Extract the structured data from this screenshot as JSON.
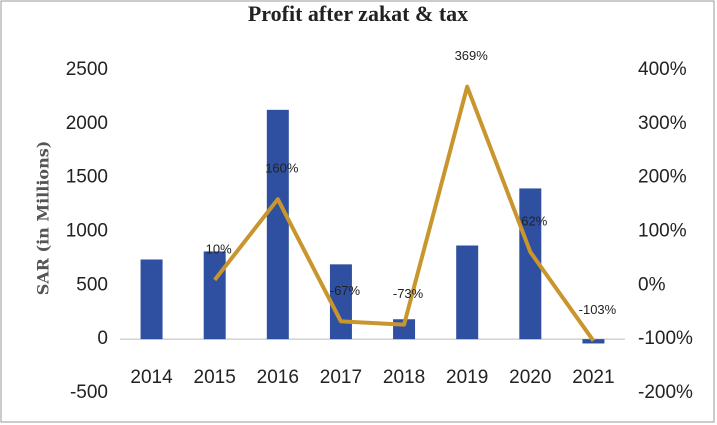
{
  "chart_data": {
    "type": "bar_line",
    "title": "Profit after zakat & tax",
    "ylabel": "SAR (in Millions)",
    "categories": [
      "2014",
      "2015",
      "2016",
      "2017",
      "2018",
      "2019",
      "2020",
      "2021"
    ],
    "series": [
      {
        "type": "bar",
        "color": "#2f50a0",
        "values": [
          740,
          815,
          2130,
          695,
          185,
          870,
          1400,
          -40
        ]
      },
      {
        "type": "line",
        "axis": "y2",
        "color": "#c9962e",
        "values": [
          null,
          10,
          160,
          -67,
          -73,
          369,
          62,
          -103
        ],
        "value_labels": [
          null,
          "10%",
          "160%",
          "-67%",
          "-73%",
          "369%",
          "62%",
          "-103%"
        ]
      }
    ],
    "ylim": [
      -500,
      2500
    ],
    "yticks": [
      -500,
      0,
      500,
      1000,
      1500,
      2000,
      2500
    ],
    "y2lim": [
      -200,
      400
    ],
    "y2ticks": [
      {
        "value": -200,
        "label": "-200%"
      },
      {
        "value": -100,
        "label": "-100%"
      },
      {
        "value": 0,
        "label": "0%"
      },
      {
        "value": 100,
        "label": "100%"
      },
      {
        "value": 200,
        "label": "200%"
      },
      {
        "value": 300,
        "label": "300%"
      },
      {
        "value": 400,
        "label": "400%"
      }
    ]
  }
}
